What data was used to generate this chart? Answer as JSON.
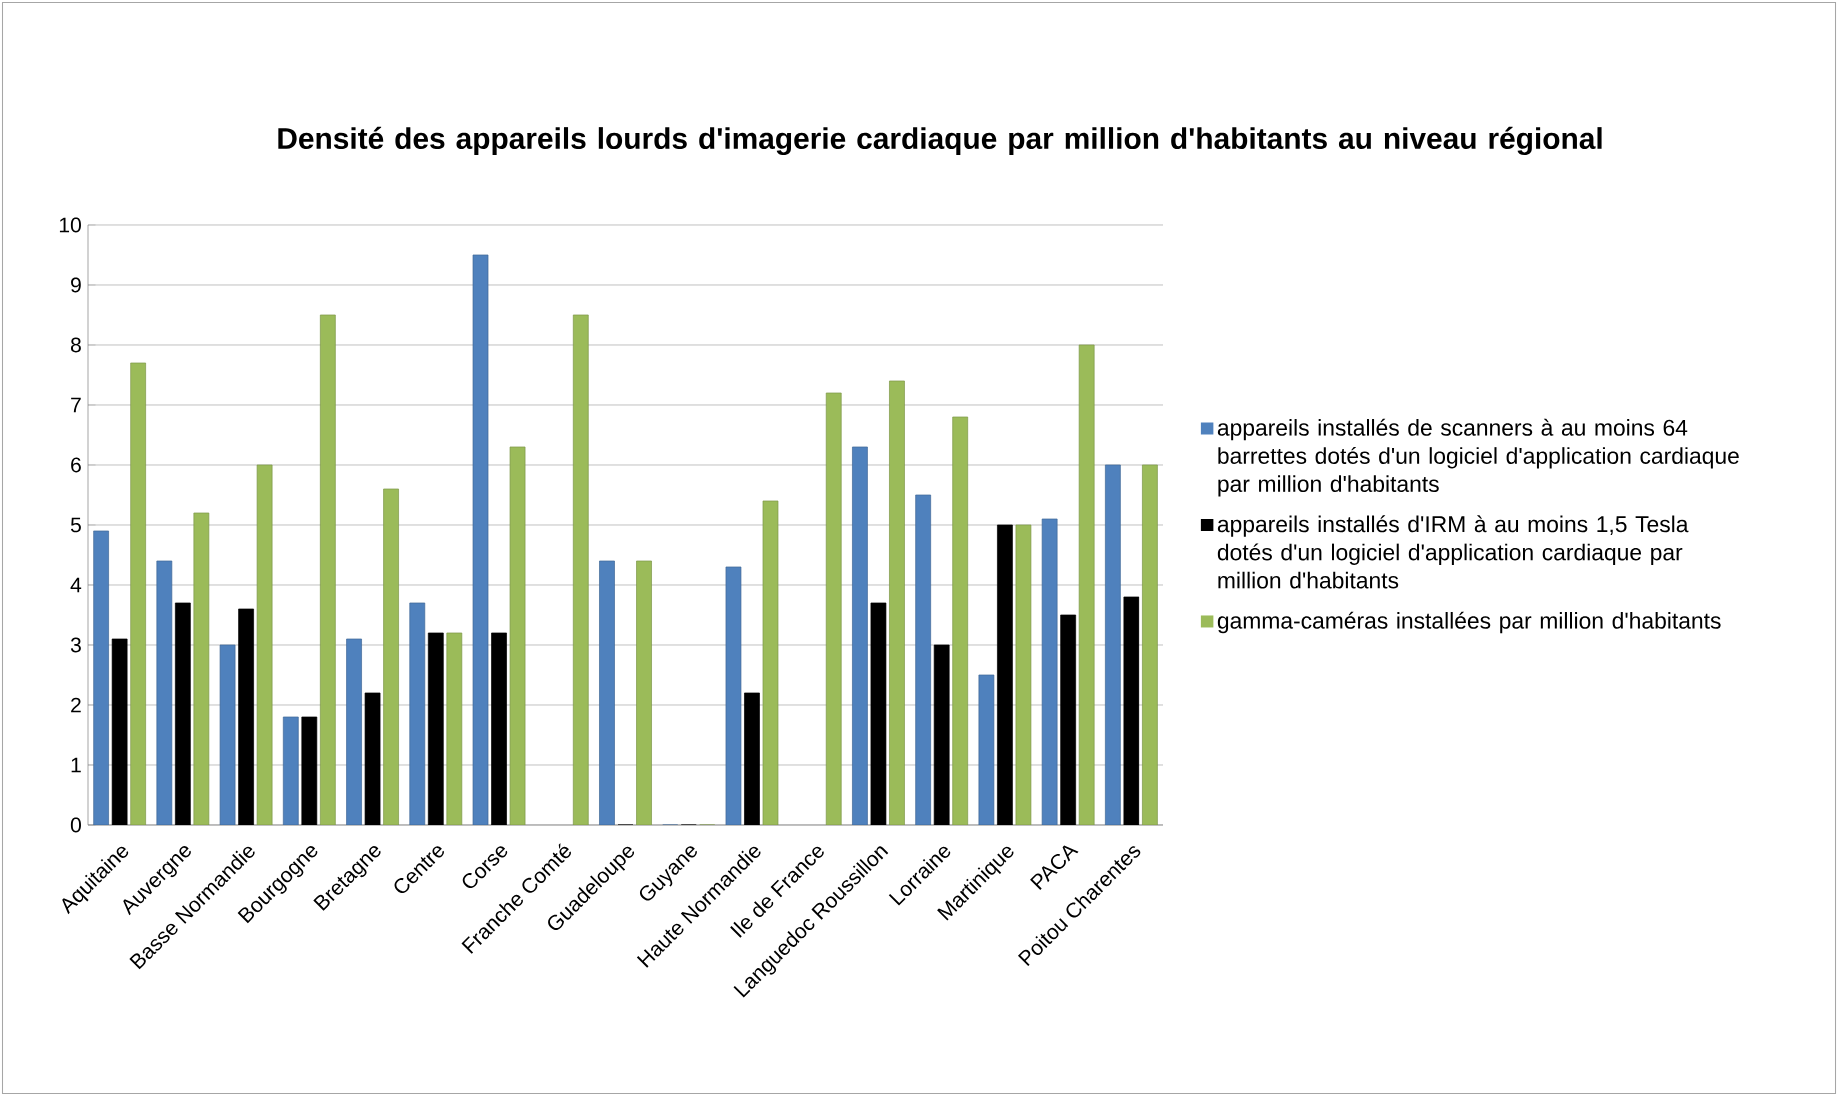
{
  "chart_data": {
    "type": "bar",
    "title": "Densité des appareils lourds d'imagerie cardiaque par million d'habitants au niveau régional",
    "categories": [
      "Aquitaine",
      "Auvergne",
      "Basse Normandie",
      "Bourgogne",
      "Bretagne",
      "Centre",
      "Corse",
      "Franche Comté",
      "Guadeloupe",
      "Guyane",
      "Haute Normandie",
      "Ile de France",
      "Languedoc Roussillon",
      "Lorraine",
      "Martinique",
      "PACA",
      "Poitou Charentes"
    ],
    "series": [
      {
        "name": "appareils installés de scanners à au moins 64 barrettes dotés d'un logiciel d'application cardiaque par million d'habitants",
        "color": "#4f81bd",
        "values": [
          4.9,
          4.4,
          3.0,
          1.8,
          3.1,
          3.7,
          9.5,
          null,
          4.4,
          0,
          4.3,
          null,
          6.3,
          5.5,
          2.5,
          5.1,
          6.0
        ]
      },
      {
        "name": "appareils installés d'IRM à au moins 1,5 Tesla dotés d'un logiciel d'application cardiaque par million d'habitants",
        "color": "#000000",
        "values": [
          3.1,
          3.7,
          3.6,
          1.8,
          2.2,
          3.2,
          3.2,
          null,
          0,
          0,
          2.2,
          null,
          3.7,
          3.0,
          5.0,
          3.5,
          3.8
        ]
      },
      {
        "name": "gamma-caméras installées par million d'habitants",
        "color": "#9bbb59",
        "values": [
          7.7,
          5.2,
          6.0,
          8.5,
          5.6,
          3.2,
          6.3,
          8.5,
          4.4,
          0,
          5.4,
          7.2,
          7.4,
          6.8,
          5.0,
          8.0,
          6.0
        ]
      }
    ],
    "ylim": [
      0,
      10
    ],
    "yticks": [
      0,
      1,
      2,
      3,
      4,
      5,
      6,
      7,
      8,
      9,
      10
    ],
    "grid": "y",
    "legend": "right"
  }
}
